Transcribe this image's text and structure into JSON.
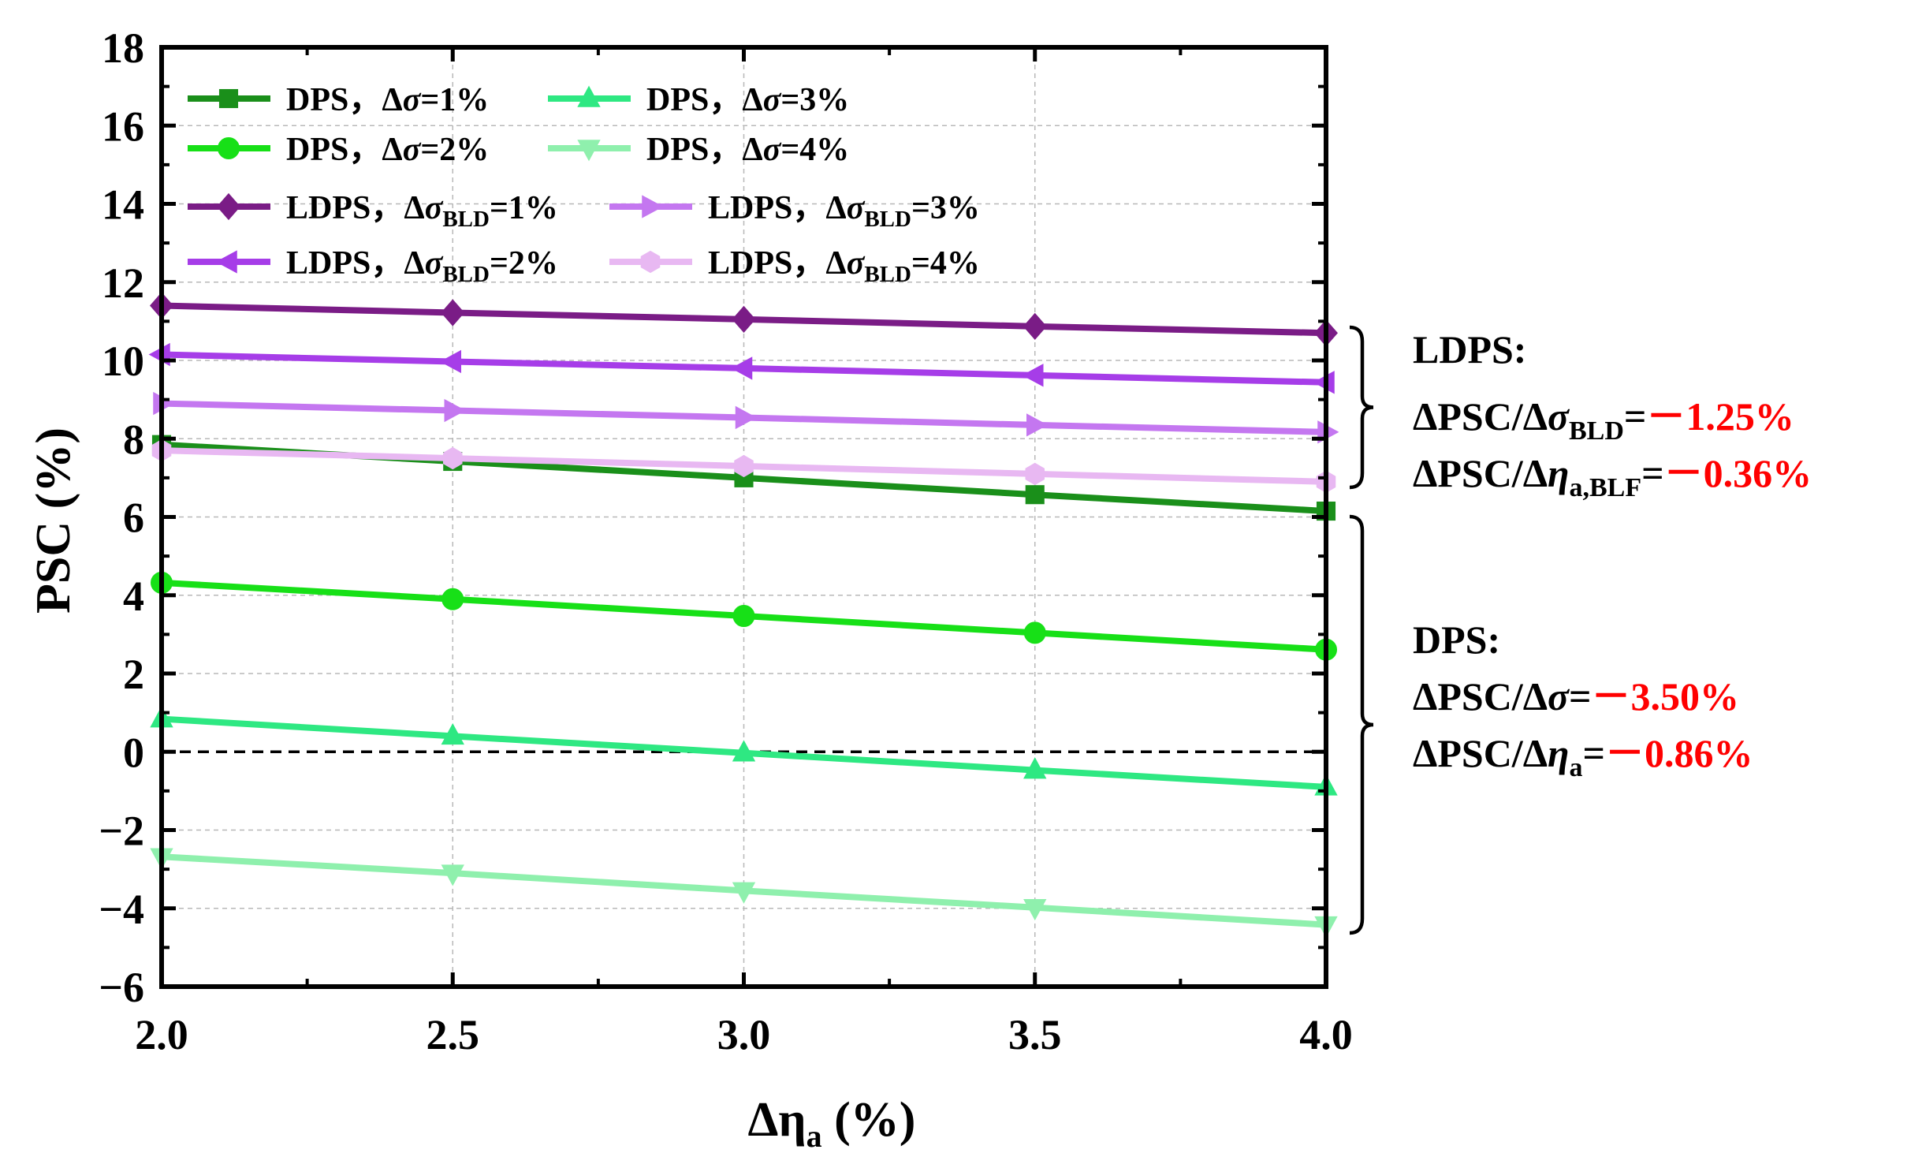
{
  "chart_data": {
    "type": "line",
    "xlabel": "Δη",
    "xlabel_sub": "a",
    "xlabel_unit": " (%)",
    "ylabel": "PSC (%)",
    "xlim": [
      2.0,
      4.0
    ],
    "ylim": [
      -6,
      18
    ],
    "xticks": [
      2.0,
      2.5,
      3.0,
      3.5,
      4.0
    ],
    "xtick_labels": [
      "2.0",
      "2.5",
      "3.0",
      "3.5",
      "4.0"
    ],
    "yticks": [
      -6,
      -4,
      -2,
      0,
      2,
      4,
      6,
      8,
      10,
      12,
      14,
      16,
      18
    ],
    "ytick_labels": [
      "−6",
      "−4",
      "−2",
      "0",
      "2",
      "4",
      "6",
      "8",
      "10",
      "12",
      "14",
      "16",
      "18"
    ],
    "grid": true,
    "zero_line": 0,
    "legend_position": "top-left",
    "x": [
      2.0,
      2.5,
      3.0,
      3.5,
      4.0
    ],
    "series": [
      {
        "name": "DPS，Δσ=1%",
        "legend": {
          "pre": "DPS，",
          "sym": "Δ",
          "ital": "σ",
          "sub": "",
          "post": "=1%"
        },
        "color": "#1a8f1a",
        "marker": "square",
        "values": [
          7.85,
          7.42,
          7.0,
          6.57,
          6.15
        ]
      },
      {
        "name": "DPS，Δσ=2%",
        "legend": {
          "pre": "DPS，",
          "sym": "Δ",
          "ital": "σ",
          "sub": "",
          "post": "=2%"
        },
        "color": "#17e017",
        "marker": "circle",
        "values": [
          4.32,
          3.9,
          3.47,
          3.04,
          2.61
        ]
      },
      {
        "name": "DPS，Δσ=3%",
        "legend": {
          "pre": "DPS，",
          "sym": "Δ",
          "ital": "σ",
          "sub": "",
          "post": "=3%"
        },
        "color": "#2ee882",
        "marker": "triangle-up",
        "values": [
          0.84,
          0.4,
          -0.03,
          -0.47,
          -0.9
        ]
      },
      {
        "name": "DPS，Δσ=4%",
        "legend": {
          "pre": "DPS，",
          "sym": "Δ",
          "ital": "σ",
          "sub": "",
          "post": "=4%"
        },
        "color": "#8ff0ad",
        "marker": "triangle-down",
        "values": [
          -2.68,
          -3.1,
          -3.55,
          -3.98,
          -4.42
        ]
      },
      {
        "name": "LDPS，ΔσBLD=1%",
        "legend": {
          "pre": "LDPS，",
          "sym": "Δ",
          "ital": "σ",
          "sub": "BLD",
          "post": "=1%"
        },
        "color": "#7a1c86",
        "marker": "diamond",
        "values": [
          11.4,
          11.22,
          11.05,
          10.87,
          10.7
        ]
      },
      {
        "name": "LDPS，ΔσBLD=2%",
        "legend": {
          "pre": "LDPS，",
          "sym": "Δ",
          "ital": "σ",
          "sub": "BLD",
          "post": "=2%"
        },
        "color": "#a63de8",
        "marker": "triangle-left",
        "values": [
          10.15,
          9.97,
          9.8,
          9.62,
          9.44
        ]
      },
      {
        "name": "LDPS，ΔσBLD=3%",
        "legend": {
          "pre": "LDPS，",
          "sym": "Δ",
          "ital": "σ",
          "sub": "BLD",
          "post": "=3%"
        },
        "color": "#c477f0",
        "marker": "triangle-right",
        "values": [
          8.9,
          8.72,
          8.54,
          8.35,
          8.17
        ]
      },
      {
        "name": "LDPS，ΔσBLD=4%",
        "legend": {
          "pre": "LDPS，",
          "sym": "Δ",
          "ital": "σ",
          "sub": "BLD",
          "post": "=4%"
        },
        "color": "#e8b8f2",
        "marker": "hexagon",
        "values": [
          7.7,
          7.5,
          7.3,
          7.1,
          6.9
        ]
      }
    ],
    "annotations": [
      {
        "title": "LDPS:",
        "span": [
          6.9,
          10.7
        ],
        "lines": [
          {
            "pre": "ΔPSC/Δ",
            "ital": "σ",
            "sub": "BLD",
            "post": "=",
            "value": "－1.25%",
            "value_color": "#ff0000"
          },
          {
            "pre": "ΔPSC/Δ",
            "ital": "η",
            "sub": "a,BLF",
            "post": "=",
            "value": "－0.36%",
            "value_color": "#ff0000"
          }
        ]
      },
      {
        "title": "DPS:",
        "span": [
          -4.42,
          6.15
        ],
        "lines": [
          {
            "pre": "ΔPSC/Δ",
            "ital": "σ",
            "sub": "",
            "post": "=",
            "value": "－3.50%",
            "value_color": "#ff0000"
          },
          {
            "pre": "ΔPSC/Δ",
            "ital": "η",
            "sub": "a",
            "post": "=",
            "value": "－0.86%",
            "value_color": "#ff0000"
          }
        ]
      }
    ]
  }
}
